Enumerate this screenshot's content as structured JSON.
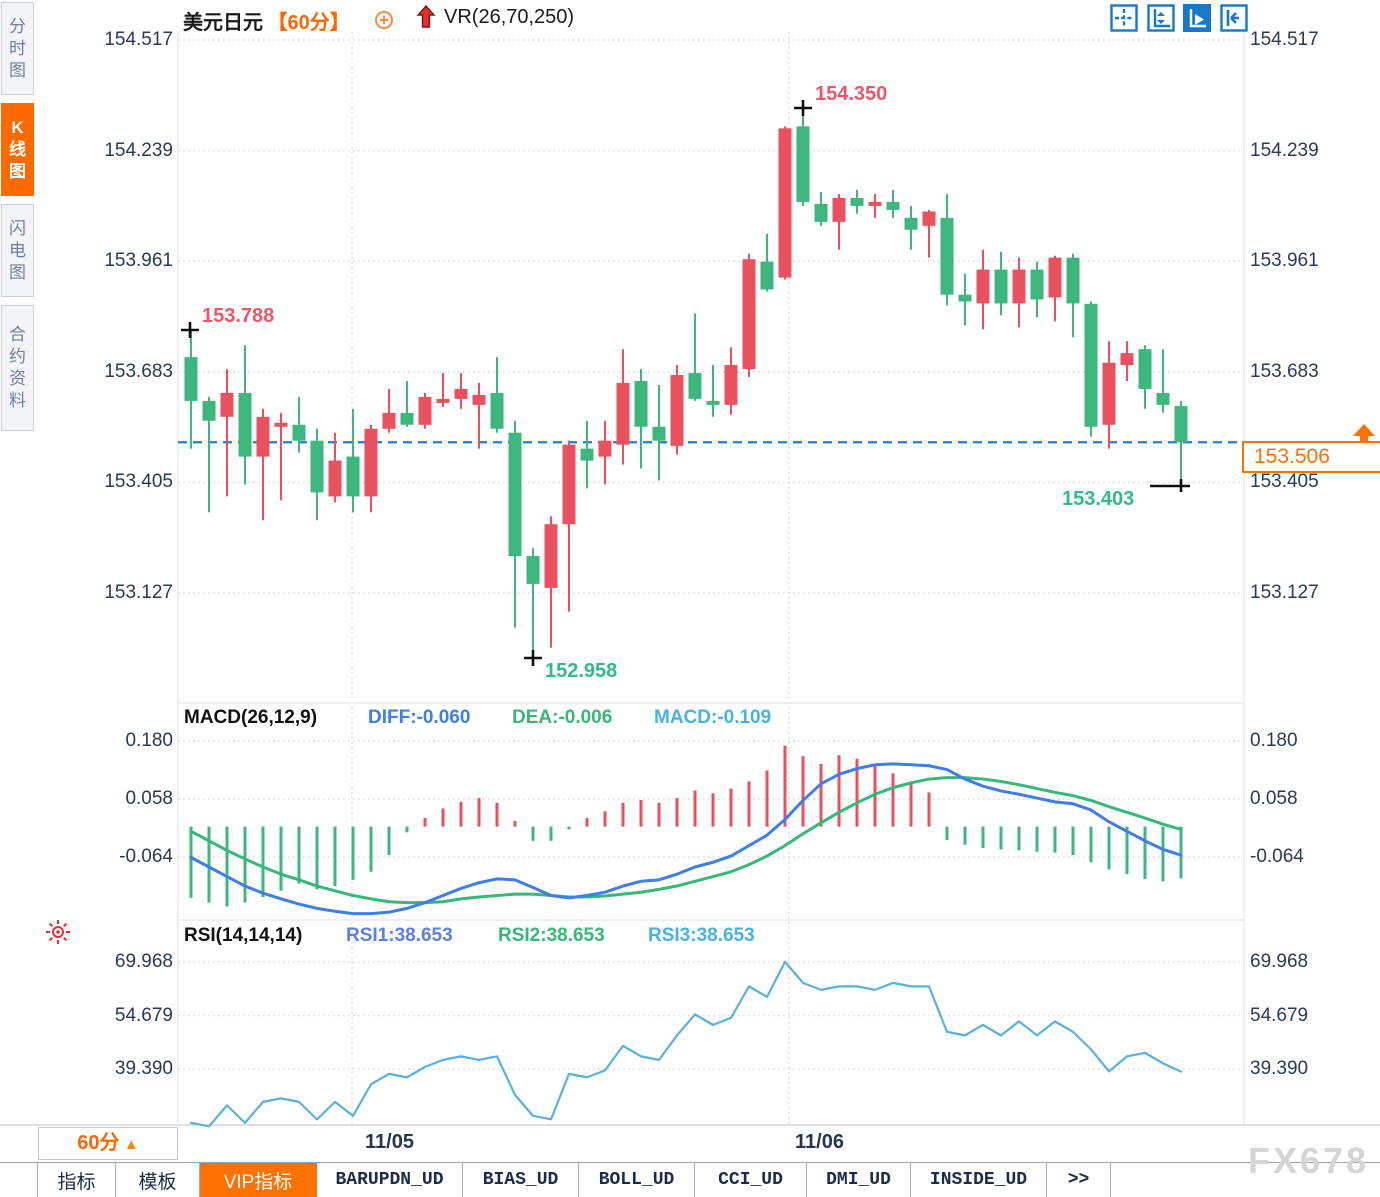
{
  "window": {
    "title": "美元日元",
    "period_tag": "【60分】",
    "indicator_label": "VR(26,70,250)"
  },
  "sidebar": {
    "tabs": [
      {
        "label": "分时图",
        "active": false
      },
      {
        "label": "K线图",
        "active": true
      },
      {
        "label": "闪电图",
        "active": false
      },
      {
        "label": "合约资料",
        "active": false
      }
    ]
  },
  "toolbar_icons": [
    "crosshair-icon",
    "axis-zoom-icon",
    "axis-play-icon",
    "pan-right-icon"
  ],
  "main_chart": {
    "y_axis_ticks": [
      "154.517",
      "154.239",
      "153.961",
      "153.683",
      "153.405",
      "153.127"
    ],
    "x_axis_labels": [
      "11/05",
      "11/06"
    ],
    "annotations": {
      "local_high": "153.788",
      "high": "154.350",
      "low": "152.958",
      "recent_low": "153.403",
      "last_price": "153.506"
    }
  },
  "macd_panel": {
    "title": "MACD(26,12,9)",
    "diff_label": "DIFF:-0.060",
    "dea_label": "DEA:-0.006",
    "macd_label": "MACD:-0.109",
    "y_axis_ticks": [
      "0.180",
      "0.058",
      "-0.064"
    ]
  },
  "rsi_panel": {
    "title": "RSI(14,14,14)",
    "rsi1_label": "RSI1:38.653",
    "rsi2_label": "RSI2:38.653",
    "rsi3_label": "RSI3:38.653",
    "y_axis_ticks": [
      "69.968",
      "54.679",
      "39.390"
    ]
  },
  "bottom": {
    "period_selector": "60分",
    "period_caret": "▲",
    "tabs": [
      {
        "label": "指标",
        "active": false,
        "mono": false
      },
      {
        "label": "模板",
        "active": false,
        "mono": false
      },
      {
        "label": "VIP指标",
        "active": true,
        "mono": false
      },
      {
        "label": "BARUPDN_UD",
        "active": false,
        "mono": true
      },
      {
        "label": "BIAS_UD",
        "active": false,
        "mono": true
      },
      {
        "label": "BOLL_UD",
        "active": false,
        "mono": true
      },
      {
        "label": "CCI_UD",
        "active": false,
        "mono": true
      },
      {
        "label": "DMI_UD",
        "active": false,
        "mono": true
      },
      {
        "label": "INSIDE_UD",
        "active": false,
        "mono": true
      },
      {
        "label": ">>",
        "active": false,
        "mono": true
      }
    ]
  },
  "watermark": "FX678",
  "colors": {
    "accent_orange": "#ff6600",
    "bull_red": "#e8515d",
    "bear_green": "#3db77d",
    "diff_blue": "#3f7de8",
    "dea_green": "#35b878",
    "macd_cyan": "#47b2e5",
    "rsi_line_blue": "#5ab0de",
    "dashed_line_blue": "#1f7de0",
    "icon_blue": "#1878c8",
    "grid_gray": "#dcdcdc",
    "annotation_pink": "#ef5669",
    "annotation_green": "#2fbb8c"
  },
  "chart_data": {
    "type": "candlestick",
    "symbol": "美元日元",
    "interval": "60分",
    "color_convention": "red=up green=down",
    "price_axis_ticks": [
      154.517,
      154.239,
      153.961,
      153.683,
      153.405,
      153.127
    ],
    "last_price": 153.506,
    "marked_high": 154.35,
    "marked_low": 152.958,
    "marked_open_high": 153.788,
    "marked_recent_low": 153.403,
    "x_labels": [
      "11/05",
      "11/06"
    ],
    "candles_ohlc": [
      [
        153.72,
        153.788,
        153.49,
        153.61
      ],
      [
        153.61,
        153.62,
        153.33,
        153.56
      ],
      [
        153.57,
        153.69,
        153.37,
        153.63
      ],
      [
        153.63,
        153.75,
        153.4,
        153.47
      ],
      [
        153.47,
        153.59,
        153.31,
        153.57
      ],
      [
        153.545,
        153.58,
        153.36,
        153.555
      ],
      [
        153.55,
        153.62,
        153.48,
        153.51
      ],
      [
        153.51,
        153.54,
        153.31,
        153.38
      ],
      [
        153.37,
        153.53,
        153.355,
        153.46
      ],
      [
        153.47,
        153.59,
        153.33,
        153.37
      ],
      [
        153.37,
        153.55,
        153.33,
        153.54
      ],
      [
        153.54,
        153.64,
        153.53,
        153.58
      ],
      [
        153.58,
        153.66,
        153.545,
        153.55
      ],
      [
        153.55,
        153.63,
        153.54,
        153.62
      ],
      [
        153.605,
        153.68,
        153.595,
        153.615
      ],
      [
        153.615,
        153.68,
        153.59,
        153.64
      ],
      [
        153.6,
        153.655,
        153.49,
        153.625
      ],
      [
        153.63,
        153.72,
        153.53,
        153.54
      ],
      [
        153.53,
        153.56,
        153.04,
        153.22
      ],
      [
        153.22,
        153.24,
        152.958,
        153.15
      ],
      [
        153.14,
        153.32,
        152.99,
        153.3
      ],
      [
        153.3,
        153.51,
        153.08,
        153.5
      ],
      [
        153.49,
        153.56,
        153.39,
        153.46
      ],
      [
        153.47,
        153.56,
        153.4,
        153.51
      ],
      [
        153.5,
        153.74,
        153.45,
        153.655
      ],
      [
        153.66,
        153.69,
        153.44,
        153.545
      ],
      [
        153.545,
        153.65,
        153.41,
        153.51
      ],
      [
        153.497,
        153.7,
        153.475,
        153.675
      ],
      [
        153.68,
        153.83,
        153.61,
        153.615
      ],
      [
        153.61,
        153.7,
        153.57,
        153.6
      ],
      [
        153.6,
        153.745,
        153.575,
        153.7
      ],
      [
        153.69,
        153.98,
        153.67,
        153.966
      ],
      [
        153.96,
        154.03,
        153.885,
        153.89
      ],
      [
        153.92,
        154.3,
        153.915,
        154.295
      ],
      [
        154.3,
        154.35,
        154.1,
        154.11
      ],
      [
        154.105,
        154.135,
        154.05,
        154.06
      ],
      [
        154.06,
        154.13,
        153.99,
        154.12
      ],
      [
        154.12,
        154.14,
        154.08,
        154.1
      ],
      [
        154.1,
        154.13,
        154.07,
        154.11
      ],
      [
        154.11,
        154.14,
        154.07,
        154.09
      ],
      [
        154.07,
        154.1,
        153.99,
        154.04
      ],
      [
        154.05,
        154.09,
        153.97,
        154.086
      ],
      [
        154.07,
        154.13,
        153.85,
        153.877
      ],
      [
        153.877,
        153.93,
        153.8,
        153.86
      ],
      [
        153.855,
        153.99,
        153.79,
        153.94
      ],
      [
        153.94,
        153.985,
        153.825,
        153.855
      ],
      [
        153.855,
        153.97,
        153.795,
        153.94
      ],
      [
        153.94,
        153.96,
        153.82,
        153.865
      ],
      [
        153.87,
        153.975,
        153.81,
        153.97
      ],
      [
        153.97,
        153.98,
        153.77,
        153.855
      ],
      [
        153.854,
        153.86,
        153.52,
        153.545
      ],
      [
        153.55,
        153.76,
        153.49,
        153.706
      ],
      [
        153.7,
        153.76,
        153.66,
        153.73
      ],
      [
        153.74,
        153.75,
        153.59,
        153.64
      ],
      [
        153.63,
        153.74,
        153.58,
        153.6
      ],
      [
        153.597,
        153.61,
        153.403,
        153.506
      ]
    ],
    "macd": {
      "params": "26,12,9",
      "diff": -0.06,
      "dea": -0.006,
      "macd": -0.109,
      "y_ticks": [
        0.18,
        0.058,
        -0.064
      ],
      "hist_series": [
        -0.15,
        -0.16,
        -0.168,
        -0.16,
        -0.148,
        -0.135,
        -0.12,
        -0.132,
        -0.125,
        -0.112,
        -0.095,
        -0.06,
        -0.012,
        0.018,
        0.038,
        0.052,
        0.06,
        0.05,
        0.012,
        -0.03,
        -0.03,
        -0.006,
        0.018,
        0.032,
        0.05,
        0.056,
        0.05,
        0.06,
        0.076,
        0.07,
        0.08,
        0.095,
        0.118,
        0.17,
        0.148,
        0.132,
        0.15,
        0.143,
        0.132,
        0.112,
        0.092,
        0.072,
        -0.028,
        -0.038,
        -0.045,
        -0.048,
        -0.05,
        -0.053,
        -0.055,
        -0.06,
        -0.075,
        -0.09,
        -0.1,
        -0.11,
        -0.115,
        -0.109
      ],
      "diff_series": [
        -0.065,
        -0.085,
        -0.105,
        -0.125,
        -0.14,
        -0.152,
        -0.163,
        -0.172,
        -0.178,
        -0.183,
        -0.183,
        -0.18,
        -0.172,
        -0.16,
        -0.145,
        -0.13,
        -0.118,
        -0.11,
        -0.112,
        -0.128,
        -0.145,
        -0.15,
        -0.145,
        -0.138,
        -0.125,
        -0.115,
        -0.112,
        -0.1,
        -0.085,
        -0.075,
        -0.062,
        -0.04,
        -0.018,
        0.015,
        0.055,
        0.09,
        0.11,
        0.122,
        0.13,
        0.132,
        0.13,
        0.128,
        0.12,
        0.1,
        0.085,
        0.075,
        0.068,
        0.06,
        0.052,
        0.048,
        0.035,
        0.01,
        -0.01,
        -0.03,
        -0.048,
        -0.06
      ],
      "dea_series": [
        -0.01,
        -0.03,
        -0.05,
        -0.068,
        -0.085,
        -0.1,
        -0.112,
        -0.125,
        -0.135,
        -0.145,
        -0.152,
        -0.158,
        -0.16,
        -0.16,
        -0.158,
        -0.152,
        -0.148,
        -0.145,
        -0.142,
        -0.142,
        -0.145,
        -0.148,
        -0.148,
        -0.146,
        -0.142,
        -0.138,
        -0.132,
        -0.125,
        -0.115,
        -0.105,
        -0.095,
        -0.08,
        -0.062,
        -0.04,
        -0.015,
        0.008,
        0.03,
        0.05,
        0.068,
        0.082,
        0.092,
        0.1,
        0.103,
        0.103,
        0.1,
        0.095,
        0.088,
        0.08,
        0.072,
        0.065,
        0.055,
        0.042,
        0.03,
        0.018,
        0.005,
        -0.006
      ]
    },
    "rsi": {
      "params": "14,14,14",
      "rsi1": 38.653,
      "rsi2": 38.653,
      "rsi3": 38.653,
      "y_ticks": [
        69.968,
        54.679,
        39.39
      ],
      "series": [
        24,
        23,
        29,
        24,
        30,
        31,
        30,
        25,
        30,
        26,
        35,
        38,
        37,
        40,
        42,
        43,
        42,
        43,
        32,
        26,
        25,
        38,
        37,
        39,
        46,
        43,
        42,
        49,
        55,
        52,
        54,
        63,
        60,
        70,
        64,
        62,
        63,
        63,
        62,
        64,
        63,
        63,
        50,
        49,
        52,
        49,
        53,
        49,
        53,
        50,
        45,
        38.7,
        43,
        44,
        41,
        38.653
      ]
    }
  }
}
